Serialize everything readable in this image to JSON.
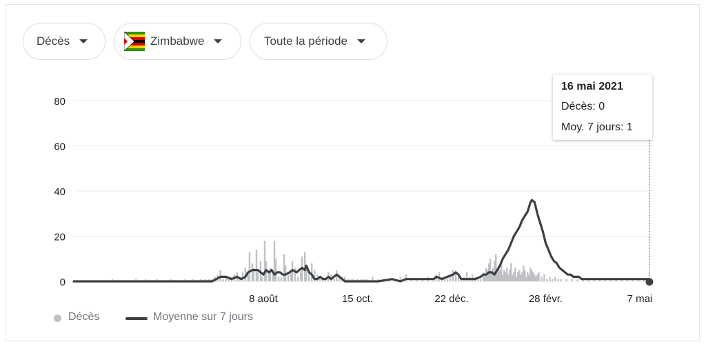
{
  "filters": {
    "metric_label": "Décès",
    "country_label": "Zimbabwe",
    "period_label": "Toute la période"
  },
  "tooltip": {
    "date": "16 mai 2021",
    "line1": "Décès: 0",
    "line2": "Moy. 7 jours: 1"
  },
  "colors": {
    "bars": "#bfc1c5",
    "average_line": "#3c4043",
    "grid": "#e8e8e8"
  },
  "chart_data": {
    "type": "bar",
    "title": "",
    "xlabel": "",
    "ylabel": "",
    "ylim": [
      0,
      80
    ],
    "yticks": [
      0,
      20,
      40,
      60,
      80
    ],
    "grid": true,
    "legend_position": "bottom-left",
    "x_tick_labels": [
      {
        "label": "8 août",
        "day_index": 137
      },
      {
        "label": "15 oct.",
        "day_index": 205
      },
      {
        "label": "22 déc.",
        "day_index": 273
      },
      {
        "label": "28 févr.",
        "day_index": 341
      },
      {
        "label": "7 mai",
        "day_index": 409
      }
    ],
    "x_range_days": [
      0,
      418
    ],
    "series": [
      {
        "name": "Décès",
        "type": "bar",
        "points": [
          [
            28,
            1
          ],
          [
            45,
            1
          ],
          [
            52,
            1
          ],
          [
            60,
            1
          ],
          [
            70,
            1
          ],
          [
            80,
            1
          ],
          [
            86,
            1
          ],
          [
            92,
            1
          ],
          [
            95,
            1
          ],
          [
            98,
            1
          ],
          [
            100,
            1
          ],
          [
            102,
            2
          ],
          [
            104,
            3
          ],
          [
            106,
            5
          ],
          [
            108,
            1
          ],
          [
            110,
            2
          ],
          [
            112,
            1
          ],
          [
            114,
            2
          ],
          [
            116,
            3
          ],
          [
            118,
            4
          ],
          [
            120,
            2
          ],
          [
            122,
            4
          ],
          [
            124,
            6
          ],
          [
            126,
            3
          ],
          [
            127,
            13
          ],
          [
            129,
            8
          ],
          [
            130,
            6
          ],
          [
            132,
            14
          ],
          [
            133,
            4
          ],
          [
            135,
            9
          ],
          [
            136,
            2
          ],
          [
            138,
            18
          ],
          [
            139,
            9
          ],
          [
            141,
            4
          ],
          [
            142,
            6
          ],
          [
            144,
            3
          ],
          [
            145,
            18
          ],
          [
            146,
            10
          ],
          [
            148,
            2
          ],
          [
            150,
            2
          ],
          [
            152,
            12
          ],
          [
            153,
            7
          ],
          [
            155,
            3
          ],
          [
            157,
            4
          ],
          [
            158,
            9
          ],
          [
            160,
            6
          ],
          [
            162,
            2
          ],
          [
            164,
            4
          ],
          [
            165,
            11
          ],
          [
            167,
            13
          ],
          [
            168,
            6
          ],
          [
            170,
            3
          ],
          [
            172,
            8
          ],
          [
            174,
            5
          ],
          [
            176,
            3
          ],
          [
            178,
            1
          ],
          [
            180,
            2
          ],
          [
            182,
            1
          ],
          [
            184,
            4
          ],
          [
            186,
            3
          ],
          [
            188,
            1
          ],
          [
            190,
            5
          ],
          [
            192,
            2
          ],
          [
            194,
            2
          ],
          [
            196,
            2
          ],
          [
            198,
            1
          ],
          [
            200,
            1
          ],
          [
            202,
            1
          ],
          [
            205,
            1
          ],
          [
            208,
            1
          ],
          [
            210,
            1
          ],
          [
            212,
            1
          ],
          [
            216,
            2
          ],
          [
            220,
            1
          ],
          [
            224,
            1
          ],
          [
            228,
            1
          ],
          [
            232,
            1
          ],
          [
            236,
            2
          ],
          [
            240,
            3
          ],
          [
            244,
            1
          ],
          [
            248,
            1
          ],
          [
            252,
            1
          ],
          [
            256,
            2
          ],
          [
            260,
            1
          ],
          [
            262,
            3
          ],
          [
            264,
            4
          ],
          [
            266,
            2
          ],
          [
            268,
            2
          ],
          [
            270,
            1
          ],
          [
            272,
            3
          ],
          [
            274,
            5
          ],
          [
            276,
            4
          ],
          [
            278,
            2
          ],
          [
            280,
            1
          ],
          [
            282,
            2
          ],
          [
            284,
            4
          ],
          [
            286,
            2
          ],
          [
            288,
            3
          ],
          [
            290,
            2
          ],
          [
            292,
            2
          ],
          [
            294,
            1
          ],
          [
            296,
            4
          ],
          [
            297,
            3
          ],
          [
            298,
            6
          ],
          [
            299,
            5
          ],
          [
            300,
            8
          ],
          [
            301,
            10
          ],
          [
            302,
            4
          ],
          [
            303,
            6
          ],
          [
            304,
            9
          ],
          [
            305,
            12
          ],
          [
            306,
            4
          ],
          [
            307,
            6
          ],
          [
            308,
            5
          ],
          [
            309,
            7
          ],
          [
            310,
            3
          ],
          [
            311,
            5
          ],
          [
            312,
            4
          ],
          [
            313,
            6
          ],
          [
            314,
            3
          ],
          [
            315,
            5
          ],
          [
            316,
            8
          ],
          [
            317,
            3
          ],
          [
            318,
            4
          ],
          [
            319,
            6
          ],
          [
            320,
            2
          ],
          [
            321,
            4
          ],
          [
            322,
            5
          ],
          [
            323,
            3
          ],
          [
            324,
            4
          ],
          [
            325,
            7
          ],
          [
            326,
            5
          ],
          [
            327,
            2
          ],
          [
            328,
            4
          ],
          [
            329,
            3
          ],
          [
            330,
            6
          ],
          [
            331,
            5
          ],
          [
            332,
            4
          ],
          [
            333,
            3
          ],
          [
            334,
            2
          ],
          [
            335,
            3
          ],
          [
            336,
            4
          ],
          [
            338,
            2
          ],
          [
            340,
            3
          ],
          [
            342,
            1
          ],
          [
            344,
            2
          ],
          [
            346,
            1
          ],
          [
            348,
            2
          ],
          [
            350,
            1
          ],
          [
            352,
            1
          ],
          [
            356,
            1
          ],
          [
            360,
            1
          ],
          [
            364,
            1
          ],
          [
            368,
            1
          ],
          [
            372,
            1
          ],
          [
            376,
            1
          ],
          [
            380,
            1
          ],
          [
            384,
            1
          ],
          [
            388,
            1
          ],
          [
            392,
            1
          ],
          [
            396,
            1
          ],
          [
            400,
            1
          ],
          [
            404,
            1
          ],
          [
            408,
            1
          ],
          [
            412,
            1
          ],
          [
            416,
            0
          ]
        ]
      },
      {
        "name": "Moyenne sur 7 jours",
        "type": "line",
        "points": [
          [
            0,
            0
          ],
          [
            50,
            0
          ],
          [
            100,
            0
          ],
          [
            103,
            1
          ],
          [
            106,
            2
          ],
          [
            110,
            2
          ],
          [
            114,
            1
          ],
          [
            118,
            2
          ],
          [
            121,
            1
          ],
          [
            124,
            2
          ],
          [
            126,
            4
          ],
          [
            129,
            5
          ],
          [
            131,
            5
          ],
          [
            133,
            5
          ],
          [
            135,
            4
          ],
          [
            137,
            3
          ],
          [
            139,
            5
          ],
          [
            141,
            4
          ],
          [
            143,
            5
          ],
          [
            145,
            3
          ],
          [
            147,
            4
          ],
          [
            149,
            4
          ],
          [
            151,
            3
          ],
          [
            153,
            3
          ],
          [
            156,
            4
          ],
          [
            158,
            5
          ],
          [
            161,
            4
          ],
          [
            163,
            5
          ],
          [
            165,
            6
          ],
          [
            167,
            5
          ],
          [
            168,
            7
          ],
          [
            170,
            4
          ],
          [
            172,
            3
          ],
          [
            174,
            1
          ],
          [
            176,
            1
          ],
          [
            178,
            2
          ],
          [
            180,
            1
          ],
          [
            182,
            1
          ],
          [
            184,
            2
          ],
          [
            186,
            1
          ],
          [
            188,
            2
          ],
          [
            190,
            3
          ],
          [
            192,
            2
          ],
          [
            194,
            1
          ],
          [
            196,
            0
          ],
          [
            200,
            0
          ],
          [
            210,
            0
          ],
          [
            220,
            0
          ],
          [
            230,
            1
          ],
          [
            236,
            0
          ],
          [
            240,
            1
          ],
          [
            244,
            1
          ],
          [
            250,
            1
          ],
          [
            256,
            1
          ],
          [
            260,
            1
          ],
          [
            262,
            2
          ],
          [
            266,
            1
          ],
          [
            270,
            2
          ],
          [
            274,
            3
          ],
          [
            276,
            4
          ],
          [
            278,
            3
          ],
          [
            280,
            1
          ],
          [
            282,
            1
          ],
          [
            286,
            1
          ],
          [
            290,
            1
          ],
          [
            294,
            2
          ],
          [
            296,
            3
          ],
          [
            298,
            3
          ],
          [
            300,
            4
          ],
          [
            302,
            4
          ],
          [
            304,
            3
          ],
          [
            306,
            5
          ],
          [
            308,
            7
          ],
          [
            310,
            10
          ],
          [
            312,
            12
          ],
          [
            314,
            14
          ],
          [
            316,
            17
          ],
          [
            318,
            20
          ],
          [
            320,
            22
          ],
          [
            322,
            24
          ],
          [
            324,
            27
          ],
          [
            326,
            29
          ],
          [
            328,
            31
          ],
          [
            330,
            35
          ],
          [
            331,
            36
          ],
          [
            333,
            35
          ],
          [
            335,
            30
          ],
          [
            337,
            26
          ],
          [
            339,
            22
          ],
          [
            341,
            17
          ],
          [
            343,
            14
          ],
          [
            345,
            11
          ],
          [
            347,
            9
          ],
          [
            349,
            8
          ],
          [
            351,
            6
          ],
          [
            353,
            5
          ],
          [
            355,
            4
          ],
          [
            357,
            3
          ],
          [
            359,
            3
          ],
          [
            361,
            2
          ],
          [
            363,
            2
          ],
          [
            365,
            2
          ],
          [
            367,
            1
          ],
          [
            369,
            1
          ],
          [
            371,
            1
          ],
          [
            373,
            1
          ],
          [
            376,
            1
          ],
          [
            380,
            1
          ],
          [
            384,
            1
          ],
          [
            388,
            1
          ],
          [
            392,
            1
          ],
          [
            396,
            1
          ],
          [
            400,
            1
          ],
          [
            404,
            1
          ],
          [
            408,
            1
          ],
          [
            412,
            1
          ],
          [
            416,
            1
          ]
        ]
      }
    ],
    "hover": {
      "day_index": 416
    }
  },
  "legend": {
    "bars_label": "Décès",
    "line_label": "Moyenne sur 7 jours"
  }
}
